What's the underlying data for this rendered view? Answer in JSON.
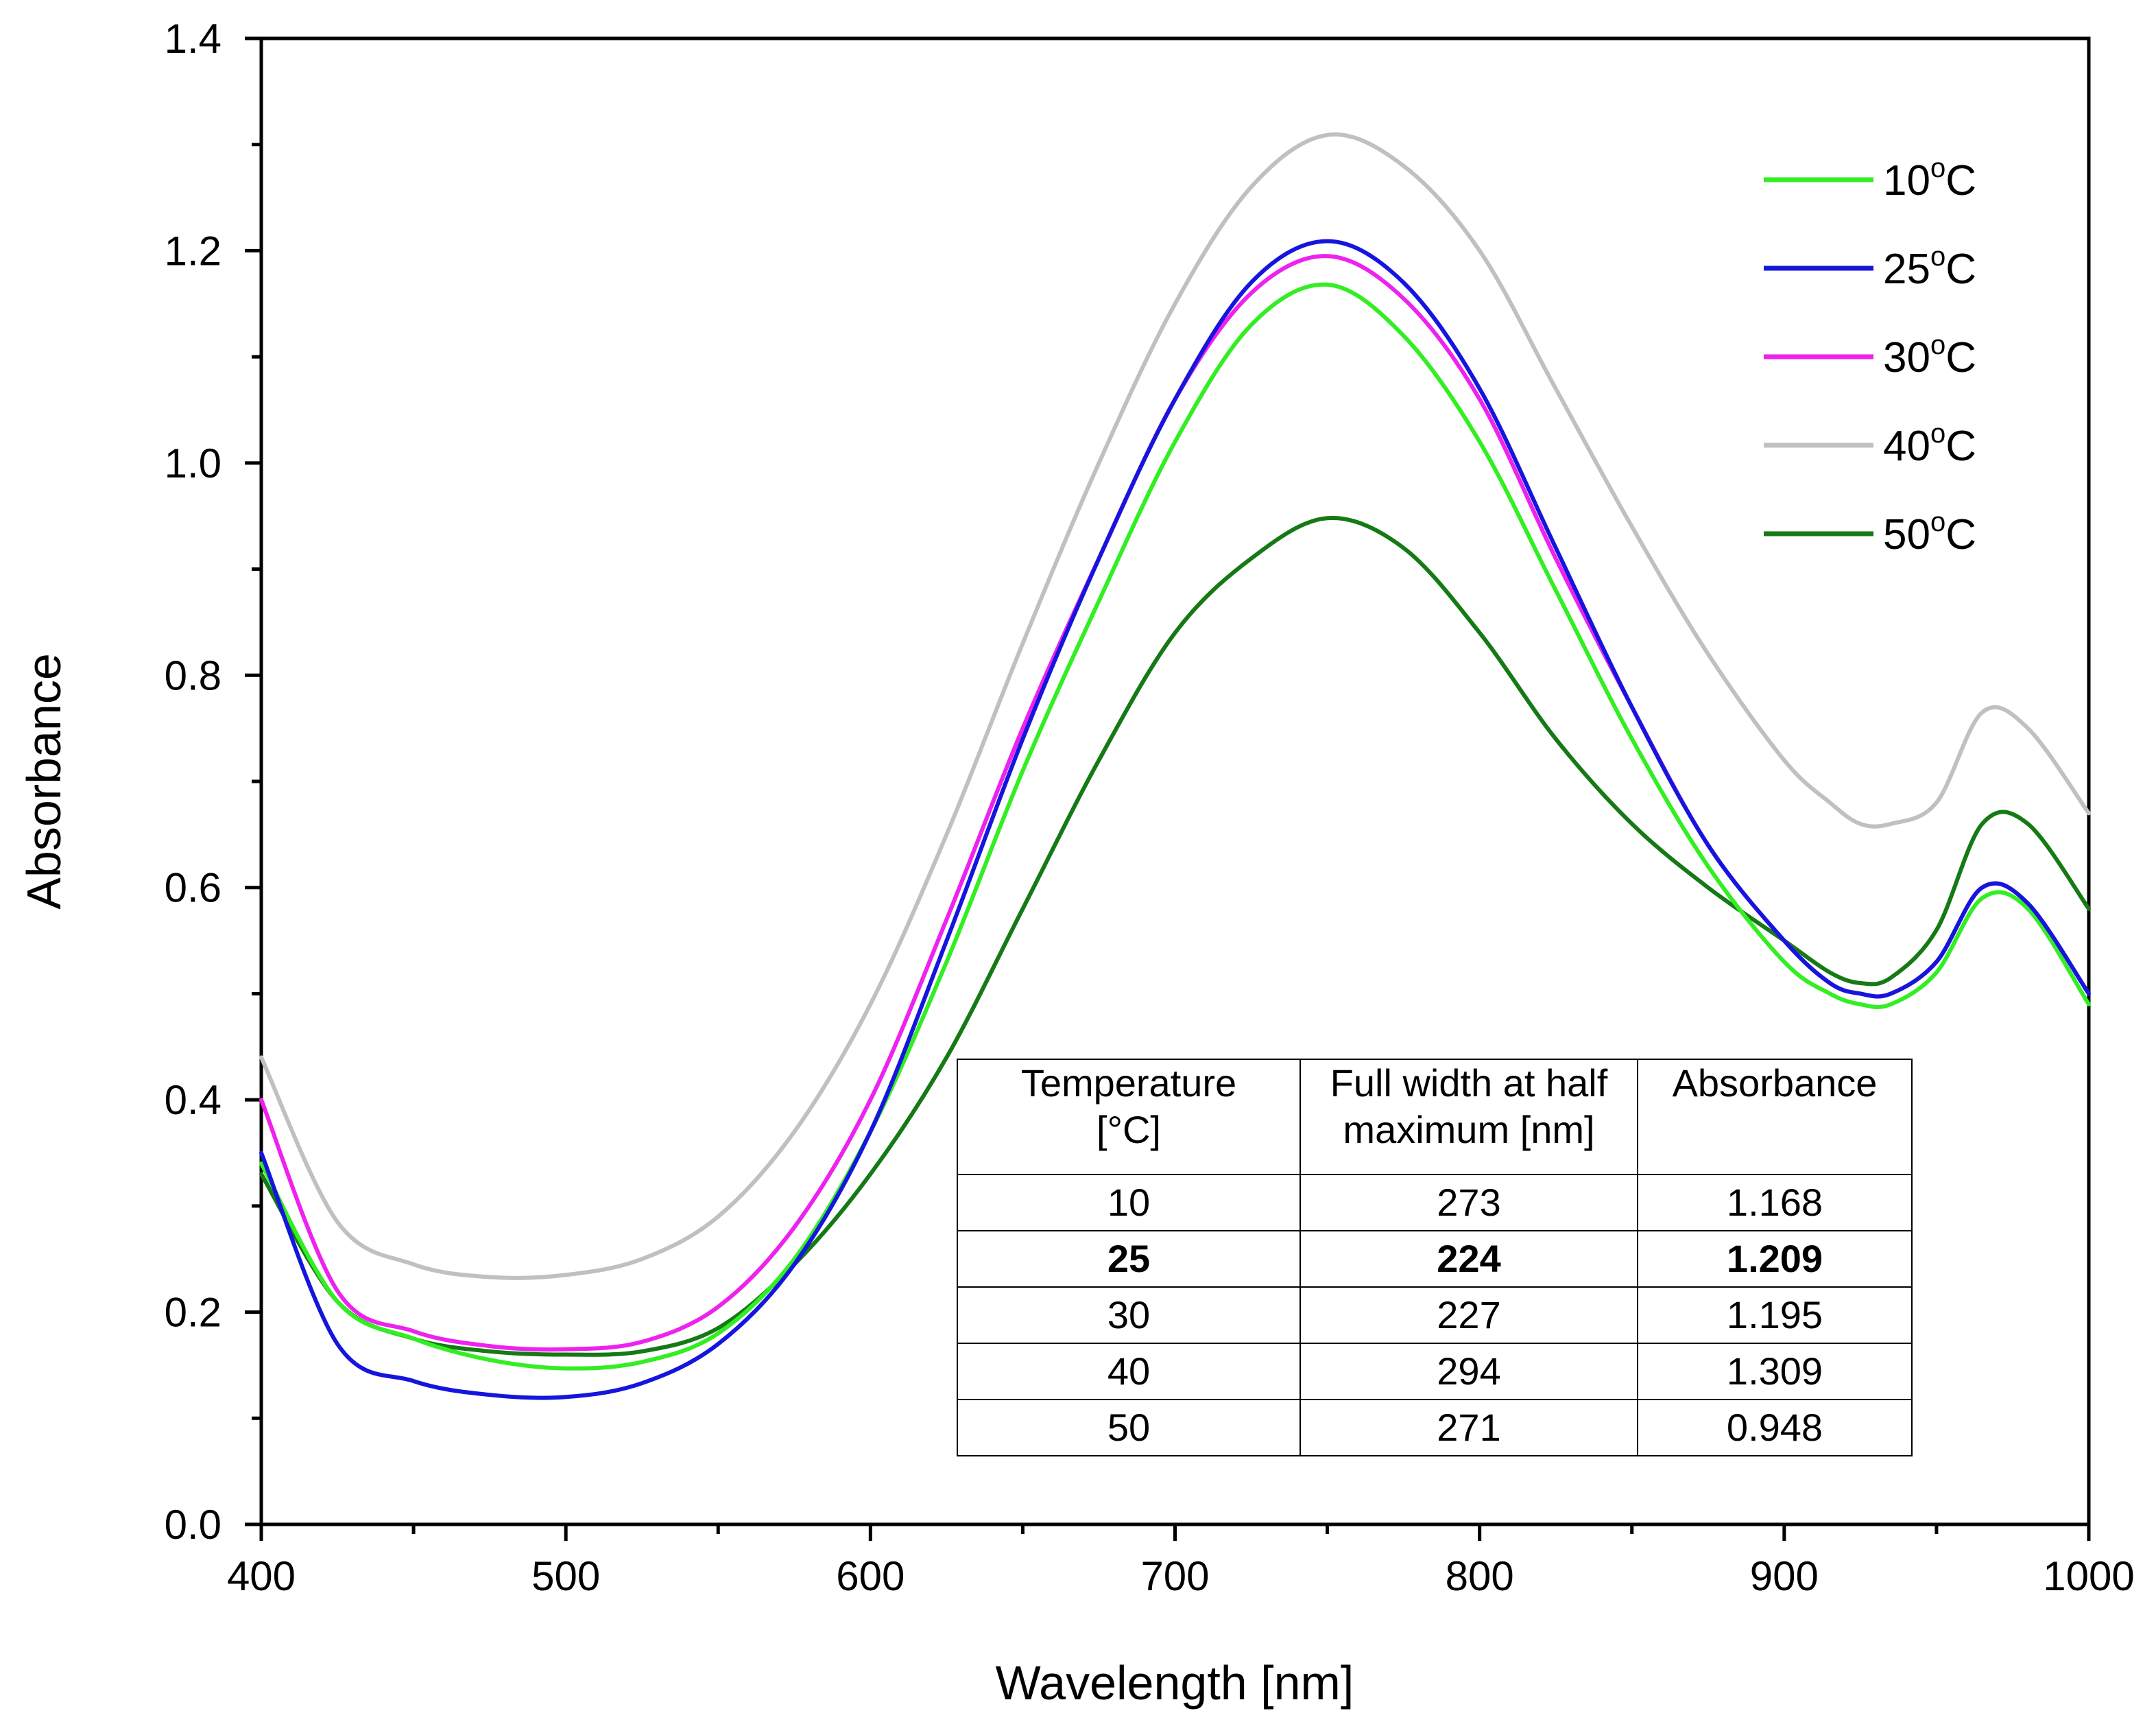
{
  "chart_data": {
    "type": "line",
    "title": "",
    "xlabel": "Wavelength [nm]",
    "ylabel": "Absorbance",
    "xlim": [
      400,
      1000
    ],
    "ylim": [
      0.0,
      1.4
    ],
    "x_ticks": [
      "400",
      "500",
      "600",
      "700",
      "800",
      "900",
      "1000"
    ],
    "y_ticks": [
      "0.0",
      "0.2",
      "0.4",
      "0.6",
      "0.8",
      "1.0",
      "1.2",
      "1.4"
    ],
    "legend_position": "top-right",
    "series": [
      {
        "name": "10",
        "unit": "oC",
        "color": "#33ee22",
        "x": [
          400,
          425,
          450,
          475,
          500,
          525,
          550,
          575,
          600,
          625,
          650,
          675,
          700,
          725,
          750,
          775,
          800,
          825,
          850,
          875,
          900,
          915,
          925,
          935,
          950,
          965,
          980,
          1000
        ],
        "y": [
          0.34,
          0.21,
          0.175,
          0.155,
          0.147,
          0.153,
          0.18,
          0.25,
          0.37,
          0.53,
          0.71,
          0.87,
          1.02,
          1.13,
          1.168,
          1.12,
          1.02,
          0.88,
          0.74,
          0.62,
          0.53,
          0.5,
          0.49,
          0.49,
          0.52,
          0.59,
          0.58,
          0.49
        ]
      },
      {
        "name": "25",
        "unit": "oC",
        "color": "#1515dd",
        "x": [
          400,
          425,
          450,
          475,
          500,
          525,
          550,
          575,
          600,
          625,
          650,
          675,
          700,
          725,
          750,
          775,
          800,
          825,
          850,
          875,
          900,
          915,
          925,
          935,
          950,
          965,
          980,
          1000
        ],
        "y": [
          0.35,
          0.17,
          0.135,
          0.122,
          0.12,
          0.133,
          0.17,
          0.245,
          0.37,
          0.55,
          0.74,
          0.91,
          1.06,
          1.17,
          1.209,
          1.17,
          1.07,
          0.92,
          0.77,
          0.64,
          0.55,
          0.51,
          0.5,
          0.5,
          0.53,
          0.6,
          0.585,
          0.5
        ]
      },
      {
        "name": "30",
        "unit": "oC",
        "color": "#ee22ee",
        "x": [
          400,
          425,
          450,
          475,
          500,
          525,
          550,
          575,
          600,
          625,
          650,
          675,
          700,
          725,
          750,
          775,
          800,
          825,
          850,
          875,
          900,
          915,
          925,
          935,
          950,
          965,
          980,
          1000
        ],
        "y": [
          0.4,
          0.22,
          0.182,
          0.168,
          0.165,
          0.172,
          0.205,
          0.28,
          0.4,
          0.57,
          0.75,
          0.91,
          1.06,
          1.16,
          1.195,
          1.155,
          1.06,
          0.91,
          0.77,
          0.64,
          0.55,
          0.51,
          0.5,
          0.5,
          0.53,
          0.6,
          0.585,
          0.5
        ]
      },
      {
        "name": "40",
        "unit": "oC",
        "color": "#c0c0c0",
        "x": [
          400,
          425,
          450,
          475,
          500,
          525,
          550,
          575,
          600,
          625,
          650,
          675,
          700,
          725,
          750,
          775,
          800,
          825,
          850,
          875,
          900,
          915,
          925,
          935,
          950,
          965,
          980,
          1000
        ],
        "y": [
          0.44,
          0.285,
          0.245,
          0.233,
          0.235,
          0.25,
          0.29,
          0.37,
          0.49,
          0.65,
          0.83,
          1.0,
          1.15,
          1.26,
          1.309,
          1.28,
          1.2,
          1.07,
          0.94,
          0.82,
          0.72,
          0.68,
          0.66,
          0.66,
          0.68,
          0.765,
          0.75,
          0.67
        ]
      },
      {
        "name": "50",
        "unit": "oC",
        "color": "#157a15",
        "x": [
          400,
          425,
          450,
          475,
          500,
          525,
          550,
          575,
          600,
          625,
          650,
          675,
          700,
          725,
          750,
          775,
          800,
          825,
          850,
          875,
          900,
          915,
          925,
          935,
          950,
          965,
          980,
          1000
        ],
        "y": [
          0.33,
          0.21,
          0.175,
          0.163,
          0.16,
          0.163,
          0.185,
          0.245,
          0.33,
          0.44,
          0.58,
          0.72,
          0.84,
          0.91,
          0.948,
          0.92,
          0.84,
          0.74,
          0.66,
          0.6,
          0.55,
          0.52,
          0.51,
          0.515,
          0.56,
          0.66,
          0.66,
          0.58
        ]
      }
    ],
    "table": {
      "headers": [
        {
          "line1": "Temperature",
          "line2": "[°C]"
        },
        {
          "line1": "Full width at half",
          "line2": "maximum [nm]"
        },
        {
          "line1": "Absorbance",
          "line2": ""
        }
      ],
      "rows": [
        {
          "temperature": "10",
          "fwhm": "273",
          "absorbance": "1.168",
          "bold": false
        },
        {
          "temperature": "25",
          "fwhm": "224",
          "absorbance": "1.209",
          "bold": true
        },
        {
          "temperature": "30",
          "fwhm": "227",
          "absorbance": "1.195",
          "bold": false
        },
        {
          "temperature": "40",
          "fwhm": "294",
          "absorbance": "1.309",
          "bold": false
        },
        {
          "temperature": "50",
          "fwhm": "271",
          "absorbance": "0.948",
          "bold": false
        }
      ]
    }
  }
}
